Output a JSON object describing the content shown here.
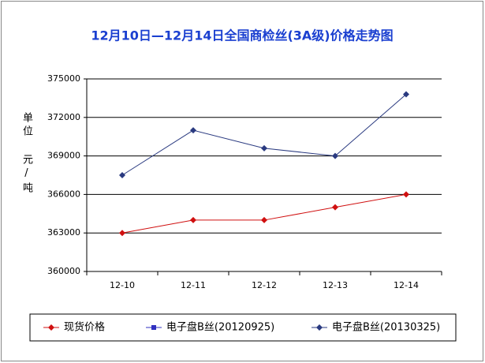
{
  "chart_data": {
    "type": "line",
    "title": "12月10日—12月14日全国商检丝(3A级)价格走势图",
    "y_label": "单位 元/吨",
    "categories": [
      "12-10",
      "12-11",
      "12-12",
      "12-13",
      "12-14"
    ],
    "series": [
      {
        "name": "现货价格",
        "color": "#d01010",
        "marker": "diamond",
        "values": [
          363000,
          364000,
          364000,
          365000,
          366000
        ]
      },
      {
        "name": "电子盘B丝(20120925)",
        "color": "#3030c0",
        "marker": "square",
        "values": [
          null,
          null,
          null,
          null,
          null
        ]
      },
      {
        "name": "电子盘B丝(20130325)",
        "color": "#2a3a80",
        "marker": "diamond",
        "values": [
          367500,
          371000,
          369600,
          369000,
          373800
        ]
      }
    ],
    "ylim": [
      360000,
      375000
    ],
    "yticks": [
      360000,
      363000,
      366000,
      369000,
      372000,
      375000
    ],
    "grid": true
  }
}
